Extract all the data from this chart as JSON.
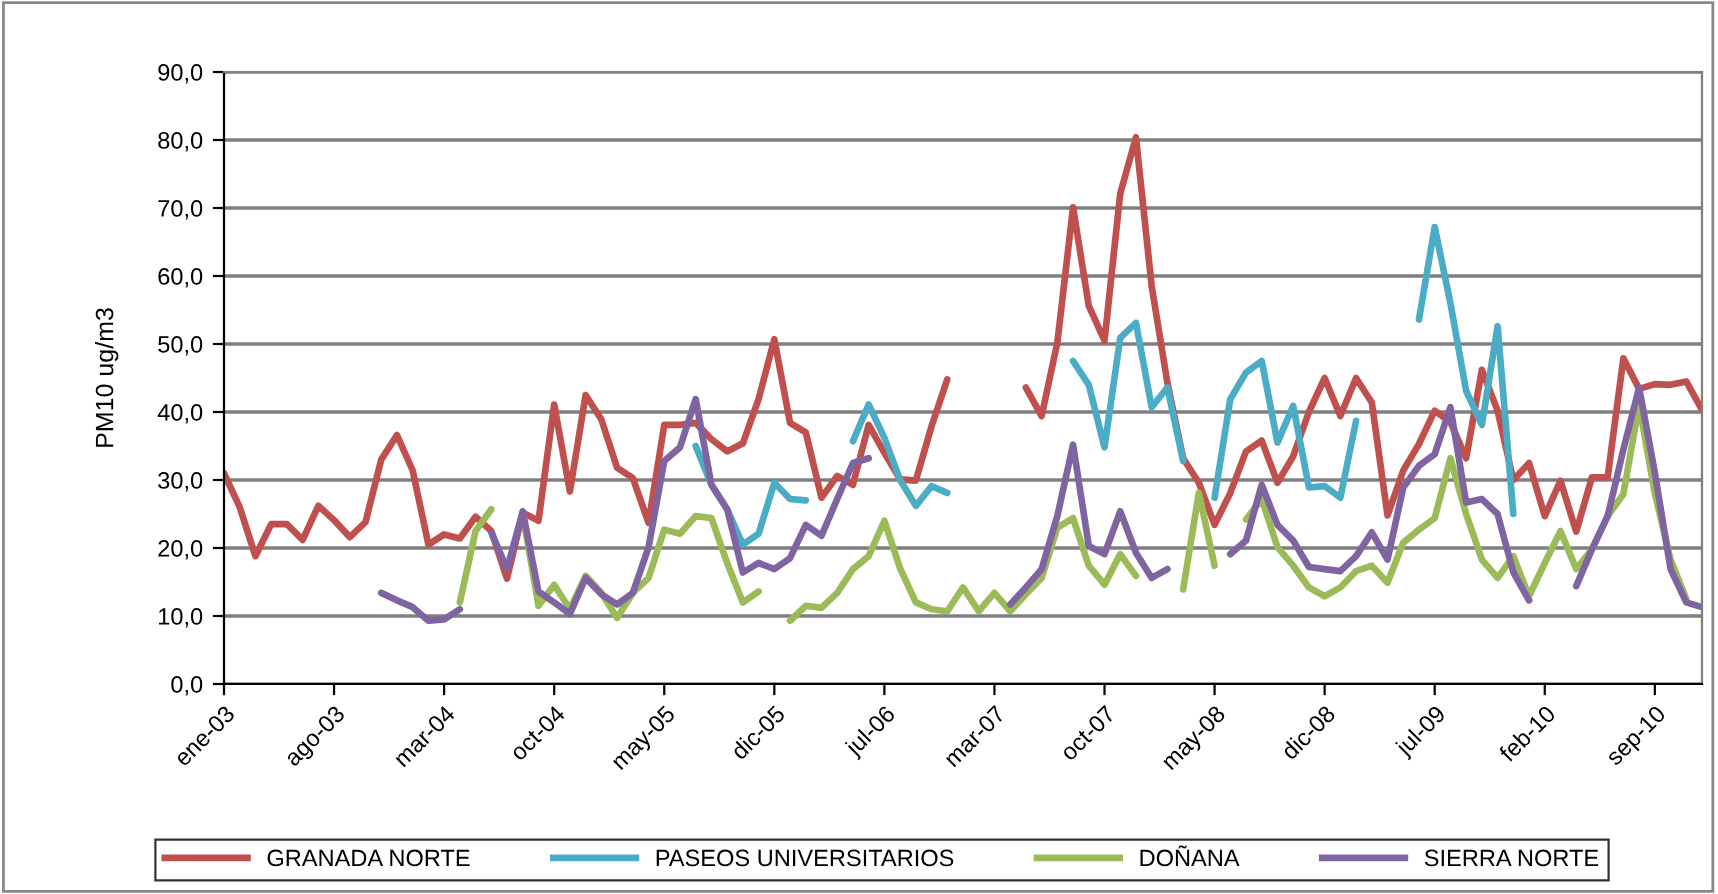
{
  "chart_data": {
    "type": "line",
    "ylabel": "PM10 ug/m3",
    "categories": [
      "ene-03",
      null,
      null,
      null,
      null,
      null,
      null,
      "ago-03",
      null,
      null,
      null,
      null,
      null,
      null,
      "mar-04",
      null,
      null,
      null,
      null,
      null,
      null,
      "oct-04",
      null,
      null,
      null,
      null,
      null,
      null,
      "may-05",
      null,
      null,
      null,
      null,
      null,
      null,
      "dic-05",
      null,
      null,
      null,
      null,
      null,
      null,
      "jul-06",
      null,
      null,
      null,
      null,
      null,
      null,
      "mar-07",
      null,
      null,
      null,
      null,
      null,
      null,
      "oct-07",
      null,
      null,
      null,
      null,
      null,
      null,
      "may-08",
      null,
      null,
      null,
      null,
      null,
      null,
      "dic-08",
      null,
      null,
      null,
      null,
      null,
      null,
      "jul-09",
      null,
      null,
      null,
      null,
      null,
      null,
      "feb-10",
      null,
      null,
      null,
      null,
      null,
      null,
      "sep-10",
      null,
      null,
      null
    ],
    "ylim": [
      0,
      90
    ],
    "yticks": [
      {
        "value": 0,
        "label": "0,0"
      },
      {
        "value": 10,
        "label": "10,0"
      },
      {
        "value": 20,
        "label": "20,0"
      },
      {
        "value": 30,
        "label": "30,0"
      },
      {
        "value": 40,
        "label": "40,0"
      },
      {
        "value": 50,
        "label": "50,0"
      },
      {
        "value": 60,
        "label": "60,0"
      },
      {
        "value": 70,
        "label": "70,0"
      },
      {
        "value": 80,
        "label": "80,0"
      },
      {
        "value": 90,
        "label": "90,0"
      }
    ],
    "grid": "y",
    "legend": "bottom",
    "marker": "none",
    "line_style": "solid",
    "series": [
      {
        "name": "GRANADA NORTE",
        "color": "#c0504d",
        "values": [
          31,
          26,
          18.8,
          23.5,
          23.5,
          21.2,
          26.2,
          24.1,
          21.6,
          23.8,
          33,
          36.6,
          31.4,
          20.5,
          22,
          21.4,
          24.6,
          22.5,
          15.5,
          25.2,
          24,
          41.1,
          28.3,
          42.5,
          38.9,
          31.8,
          30.3,
          23.7,
          38.1,
          38.1,
          38.4,
          36,
          34.2,
          35.4,
          41.9,
          50.7,
          38.4,
          37,
          27.4,
          30.6,
          29.3,
          38.1,
          34,
          30.1,
          29.9,
          37.9,
          44.8,
          null,
          null,
          null,
          null,
          43.6,
          39.4,
          50.2,
          70.1,
          55.6,
          50.5,
          72.1,
          80.4,
          58.5,
          44.3,
          33.2,
          29.6,
          23.4,
          28.1,
          34.2,
          35.8,
          29.6,
          33.5,
          40,
          45,
          39.4,
          45,
          41.4,
          24.8,
          31.4,
          35.3,
          40.2,
          38.5,
          33.2,
          46.2,
          40.2,
          30,
          32.5,
          24.7,
          29.9,
          22.4,
          30.4,
          30.4,
          47.9,
          43.4,
          44.1,
          44,
          44.5,
          40.3
        ]
      },
      {
        "name": "PASEOS UNIVERSITARIOS",
        "color": "#4bacc6",
        "values": [
          null,
          null,
          null,
          null,
          null,
          null,
          null,
          null,
          null,
          null,
          null,
          null,
          null,
          null,
          null,
          null,
          null,
          null,
          null,
          null,
          null,
          null,
          null,
          null,
          null,
          null,
          null,
          null,
          null,
          null,
          35,
          29.3,
          25.7,
          20.5,
          22.1,
          29.6,
          27.2,
          27,
          null,
          null,
          35.7,
          41.1,
          36.2,
          30,
          26.2,
          29.1,
          28.1,
          null,
          null,
          null,
          null,
          null,
          null,
          null,
          47.5,
          44,
          34.8,
          50.9,
          53.1,
          40.7,
          43.6,
          32.8,
          null,
          27.4,
          41.9,
          45.8,
          47.5,
          35.5,
          40.9,
          28.9,
          29.1,
          27.4,
          38.7,
          null,
          null,
          null,
          53.6,
          67.2,
          56,
          43.1,
          38.1,
          52.6,
          25,
          null,
          null,
          null,
          null,
          null,
          null,
          null,
          null,
          null,
          null,
          null,
          null
        ]
      },
      {
        "name": "DOÑANA",
        "color": "#9bbb59",
        "values": [
          null,
          null,
          null,
          null,
          null,
          null,
          null,
          null,
          null,
          null,
          null,
          null,
          null,
          null,
          null,
          12,
          22.5,
          25.7,
          null,
          25,
          11.5,
          14.6,
          11,
          15.9,
          13.4,
          9.7,
          13.4,
          15.6,
          22.7,
          22.1,
          24.7,
          24.4,
          17.8,
          12,
          13.6,
          null,
          9.3,
          11.5,
          11.2,
          13.4,
          16.9,
          18.8,
          24,
          17,
          12,
          11,
          10.7,
          14.2,
          10.7,
          13.4,
          10.7,
          13.2,
          15.6,
          23,
          24.4,
          17.4,
          14.6,
          19.1,
          15.9,
          null,
          null,
          13.9,
          28.1,
          17.4,
          null,
          24.2,
          27.2,
          20.1,
          17.4,
          14.2,
          12.9,
          14.2,
          16.6,
          17.4,
          14.9,
          20.8,
          22.7,
          24.4,
          33.2,
          25,
          18.3,
          15.6,
          18.8,
          12.9,
          17.8,
          22.5,
          16.9,
          19.8,
          24.7,
          27.9,
          41.1,
          28,
          18.3,
          12.5,
          null
        ]
      },
      {
        "name": "SIERRA NORTE",
        "color": "#8064a2",
        "values": [
          null,
          null,
          null,
          null,
          null,
          null,
          null,
          null,
          null,
          null,
          13.4,
          12.3,
          11.3,
          9.3,
          9.5,
          11,
          null,
          22.3,
          16.9,
          25.4,
          13.6,
          12,
          10.3,
          15.6,
          13.2,
          11.7,
          13.4,
          20.1,
          32.8,
          34.8,
          41.9,
          29.3,
          25.7,
          16.4,
          17.8,
          16.9,
          18.5,
          23.4,
          21.8,
          27.2,
          32.5,
          33.2,
          null,
          null,
          null,
          null,
          null,
          null,
          null,
          null,
          11.7,
          14.2,
          16.9,
          24.7,
          35.2,
          20.3,
          19.1,
          25.4,
          19.3,
          15.6,
          16.9,
          null,
          null,
          null,
          19.1,
          21.1,
          29.3,
          23.4,
          21.1,
          17.2,
          16.9,
          16.6,
          18.8,
          22.3,
          18.3,
          28.9,
          32.1,
          33.8,
          40.7,
          26.7,
          27.2,
          25,
          16.4,
          12.3,
          null,
          null,
          14.4,
          19.8,
          24.7,
          34.5,
          43.6,
          31.1,
          16.9,
          12,
          11.3
        ]
      }
    ]
  }
}
